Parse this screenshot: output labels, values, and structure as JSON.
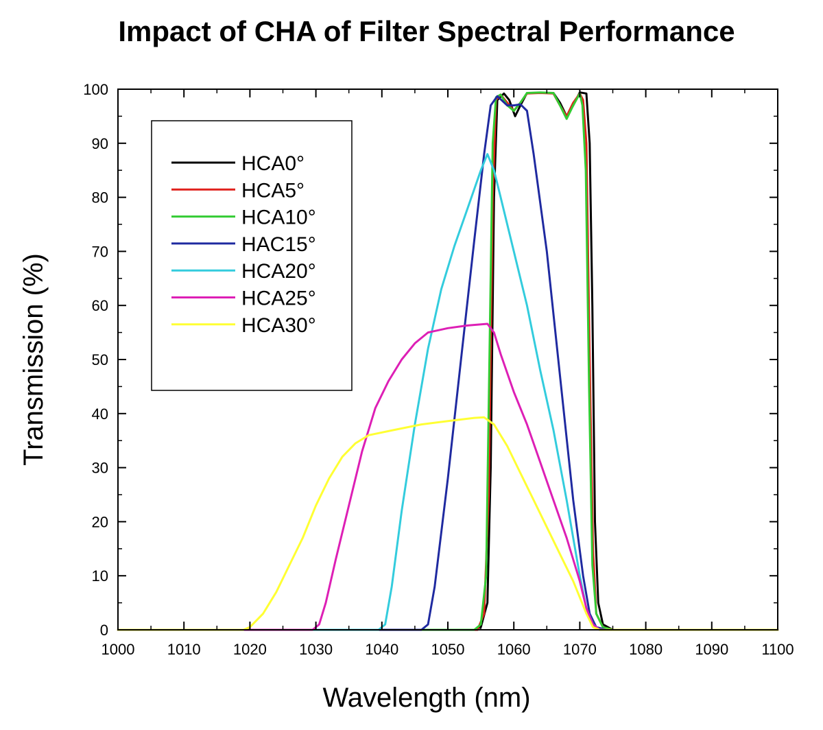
{
  "chart_data": {
    "type": "line",
    "title": "Impact of CHA of Filter Spectral Performance",
    "xlabel": "Wavelength (nm)",
    "ylabel": "Transmission (%)",
    "xlim": [
      1000,
      1100
    ],
    "ylim": [
      0,
      100
    ],
    "xticks": [
      1000,
      1010,
      1020,
      1030,
      1040,
      1050,
      1060,
      1070,
      1080,
      1090,
      1100
    ],
    "yticks": [
      0,
      10,
      20,
      30,
      40,
      50,
      60,
      70,
      80,
      90,
      100
    ],
    "grid": false,
    "legend_position": "top-left",
    "series": [
      {
        "name": "HCA0°",
        "color": "#000000",
        "points": [
          [
            1000,
            0
          ],
          [
            1054,
            0
          ],
          [
            1055,
            0.5
          ],
          [
            1056,
            5
          ],
          [
            1056.5,
            30
          ],
          [
            1057,
            80
          ],
          [
            1057.5,
            98
          ],
          [
            1058.5,
            99.2
          ],
          [
            1059.3,
            98
          ],
          [
            1060.2,
            95
          ],
          [
            1061,
            97
          ],
          [
            1062,
            99.3
          ],
          [
            1064,
            99.3
          ],
          [
            1066,
            99.3
          ],
          [
            1067,
            97.5
          ],
          [
            1068,
            95
          ],
          [
            1069,
            97
          ],
          [
            1070,
            99.4
          ],
          [
            1071,
            99.2
          ],
          [
            1071.5,
            90
          ],
          [
            1071.9,
            60
          ],
          [
            1072.3,
            20
          ],
          [
            1072.8,
            5
          ],
          [
            1073.5,
            1
          ],
          [
            1075,
            0
          ],
          [
            1100,
            0
          ]
        ]
      },
      {
        "name": "HCA5°",
        "color": "#e0201b",
        "points": [
          [
            1000,
            0
          ],
          [
            1054.5,
            0
          ],
          [
            1055.5,
            3
          ],
          [
            1056.2,
            25
          ],
          [
            1056.8,
            80
          ],
          [
            1057.3,
            98
          ],
          [
            1058,
            99
          ],
          [
            1059,
            97.5
          ],
          [
            1060,
            96
          ],
          [
            1061,
            97.5
          ],
          [
            1062,
            99.2
          ],
          [
            1064,
            99.3
          ],
          [
            1066,
            99.2
          ],
          [
            1067,
            97
          ],
          [
            1068,
            95
          ],
          [
            1069,
            97.5
          ],
          [
            1070,
            99.2
          ],
          [
            1070.5,
            98
          ],
          [
            1071,
            90
          ],
          [
            1071.5,
            50
          ],
          [
            1072,
            15
          ],
          [
            1072.5,
            3
          ],
          [
            1073.5,
            0.5
          ],
          [
            1075,
            0
          ],
          [
            1100,
            0
          ]
        ]
      },
      {
        "name": "HCA10°",
        "color": "#33cc33",
        "points": [
          [
            1000,
            0
          ],
          [
            1054,
            0
          ],
          [
            1055,
            1
          ],
          [
            1055.8,
            10
          ],
          [
            1056.3,
            50
          ],
          [
            1056.8,
            90
          ],
          [
            1057.3,
            98.5
          ],
          [
            1058,
            99
          ],
          [
            1059,
            97
          ],
          [
            1060,
            96
          ],
          [
            1061,
            97.5
          ],
          [
            1062,
            99.3
          ],
          [
            1064,
            99.4
          ],
          [
            1066,
            99.3
          ],
          [
            1067,
            97
          ],
          [
            1068,
            94.5
          ],
          [
            1069,
            97
          ],
          [
            1070,
            99.2
          ],
          [
            1070.4,
            97
          ],
          [
            1070.9,
            85
          ],
          [
            1071.4,
            45
          ],
          [
            1071.9,
            12
          ],
          [
            1072.5,
            3
          ],
          [
            1073.5,
            0.5
          ],
          [
            1075,
            0
          ],
          [
            1100,
            0
          ]
        ]
      },
      {
        "name": "HAC15°",
        "color": "#1f2aa0",
        "points": [
          [
            1000,
            0
          ],
          [
            1046,
            0
          ],
          [
            1047,
            1
          ],
          [
            1048,
            8
          ],
          [
            1050,
            28
          ],
          [
            1052,
            50
          ],
          [
            1054,
            72
          ],
          [
            1055.5,
            88
          ],
          [
            1056.5,
            97
          ],
          [
            1057.5,
            98.7
          ],
          [
            1059,
            97
          ],
          [
            1060,
            97
          ],
          [
            1061,
            97.2
          ],
          [
            1062,
            96
          ],
          [
            1063,
            88
          ],
          [
            1065,
            70
          ],
          [
            1067,
            47
          ],
          [
            1069,
            24
          ],
          [
            1070.5,
            10
          ],
          [
            1071.5,
            3
          ],
          [
            1072.5,
            0.5
          ],
          [
            1074,
            0
          ],
          [
            1100,
            0
          ]
        ]
      },
      {
        "name": "HCA20°",
        "color": "#33ccdd",
        "points": [
          [
            1000,
            0
          ],
          [
            1039.5,
            0
          ],
          [
            1040.5,
            1
          ],
          [
            1041.5,
            8
          ],
          [
            1043,
            22
          ],
          [
            1045,
            38
          ],
          [
            1047,
            52
          ],
          [
            1049,
            63
          ],
          [
            1051,
            71
          ],
          [
            1053,
            78
          ],
          [
            1055,
            85
          ],
          [
            1056,
            88
          ],
          [
            1057,
            85
          ],
          [
            1058,
            80
          ],
          [
            1060,
            70
          ],
          [
            1062,
            60
          ],
          [
            1064,
            48
          ],
          [
            1066,
            37
          ],
          [
            1068,
            24
          ],
          [
            1070,
            10
          ],
          [
            1071,
            4
          ],
          [
            1072,
            1
          ],
          [
            1073,
            0
          ],
          [
            1100,
            0
          ]
        ]
      },
      {
        "name": "HCA25°",
        "color": "#dd1fb5",
        "points": [
          [
            1000,
            0
          ],
          [
            1029.5,
            0
          ],
          [
            1030.5,
            1
          ],
          [
            1031.5,
            5
          ],
          [
            1033,
            13
          ],
          [
            1035,
            23
          ],
          [
            1037,
            33
          ],
          [
            1039,
            41
          ],
          [
            1041,
            46
          ],
          [
            1043,
            50
          ],
          [
            1045,
            53
          ],
          [
            1047,
            55
          ],
          [
            1050,
            55.8
          ],
          [
            1053,
            56.3
          ],
          [
            1056,
            56.6
          ],
          [
            1057,
            55
          ],
          [
            1058,
            51
          ],
          [
            1060,
            44
          ],
          [
            1062,
            38
          ],
          [
            1064,
            31
          ],
          [
            1066,
            24
          ],
          [
            1068,
            17
          ],
          [
            1070,
            9
          ],
          [
            1071,
            4
          ],
          [
            1072,
            1
          ],
          [
            1073,
            0
          ],
          [
            1100,
            0
          ]
        ]
      },
      {
        "name": "HCA30°",
        "color": "#ffff33",
        "points": [
          [
            1000,
            0
          ],
          [
            1019,
            0
          ],
          [
            1020,
            0.5
          ],
          [
            1022,
            3
          ],
          [
            1024,
            7
          ],
          [
            1026,
            12
          ],
          [
            1028,
            17
          ],
          [
            1030,
            23
          ],
          [
            1032,
            28
          ],
          [
            1034,
            32
          ],
          [
            1036,
            34.5
          ],
          [
            1038,
            36
          ],
          [
            1042,
            37
          ],
          [
            1046,
            38
          ],
          [
            1050,
            38.6
          ],
          [
            1054,
            39.2
          ],
          [
            1055.5,
            39.3
          ],
          [
            1057,
            38
          ],
          [
            1059,
            34
          ],
          [
            1061,
            29
          ],
          [
            1063,
            24
          ],
          [
            1065,
            19
          ],
          [
            1067,
            14
          ],
          [
            1069,
            9
          ],
          [
            1071,
            3
          ],
          [
            1072,
            0.5
          ],
          [
            1073,
            0
          ],
          [
            1100,
            0
          ]
        ]
      }
    ]
  }
}
